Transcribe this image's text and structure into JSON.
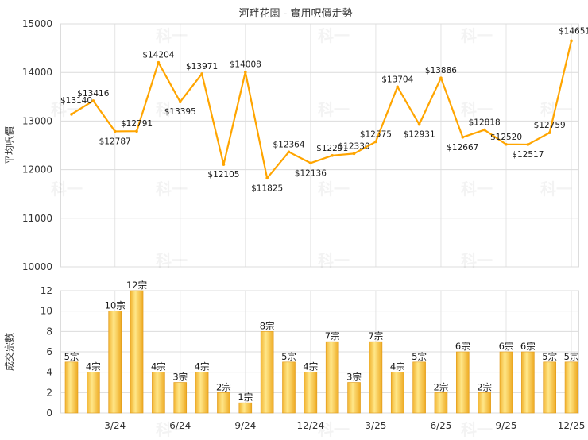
{
  "chart_data": [
    {
      "type": "line",
      "title": "河畔花園 - 實用呎價走勢",
      "ylabel": "平均呎價",
      "ylim": [
        10000,
        15000
      ],
      "yticks": [
        "10000",
        "11000",
        "12000",
        "13000",
        "14000",
        "15000"
      ],
      "color": "#ffa500",
      "values": [
        13140,
        13416,
        12787,
        12791,
        14204,
        13395,
        13971,
        12105,
        14008,
        11825,
        12364,
        12136,
        12291,
        12330,
        12575,
        13704,
        12931,
        13886,
        12667,
        12818,
        12520,
        12517,
        12759,
        14651
      ],
      "labels": [
        "$13140",
        "$13416",
        "$12787",
        "$12791",
        "$14204",
        "$13395",
        "$13971",
        "$12105",
        "$14008",
        "$11825",
        "$12364",
        "$12136",
        "$12291",
        "$12330",
        "$12575",
        "$13704",
        "$12931",
        "$13886",
        "$12667",
        "$12818",
        "$12520",
        "$12517",
        "$12759",
        "$14651"
      ],
      "grid": true
    },
    {
      "type": "bar",
      "ylabel": "成交宗數",
      "ylim": [
        0,
        12
      ],
      "yticks": [
        "0",
        "2",
        "4",
        "6",
        "8",
        "10",
        "12"
      ],
      "values": [
        5,
        4,
        10,
        12,
        4,
        3,
        4,
        2,
        1,
        8,
        5,
        4,
        7,
        3,
        7,
        4,
        5,
        2,
        6,
        2,
        6,
        6,
        5,
        5
      ],
      "labels": [
        "5宗",
        "4宗",
        "10宗",
        "12宗",
        "4宗",
        "3宗",
        "4宗",
        "2宗",
        "1宗",
        "8宗",
        "5宗",
        "4宗",
        "7宗",
        "3宗",
        "7宗",
        "4宗",
        "5宗",
        "2宗",
        "6宗",
        "2宗",
        "6宗",
        "6宗",
        "5宗",
        "5宗"
      ],
      "xticks": [
        {
          "index": 2,
          "label": "3/24"
        },
        {
          "index": 5,
          "label": "6/24"
        },
        {
          "index": 8,
          "label": "9/24"
        },
        {
          "index": 11,
          "label": "12/24"
        },
        {
          "index": 14,
          "label": "3/25"
        },
        {
          "index": 17,
          "label": "6/25"
        },
        {
          "index": 20,
          "label": "9/25"
        },
        {
          "index": 23,
          "label": "12/25"
        }
      ],
      "grid": true
    }
  ],
  "watermark": "科一"
}
